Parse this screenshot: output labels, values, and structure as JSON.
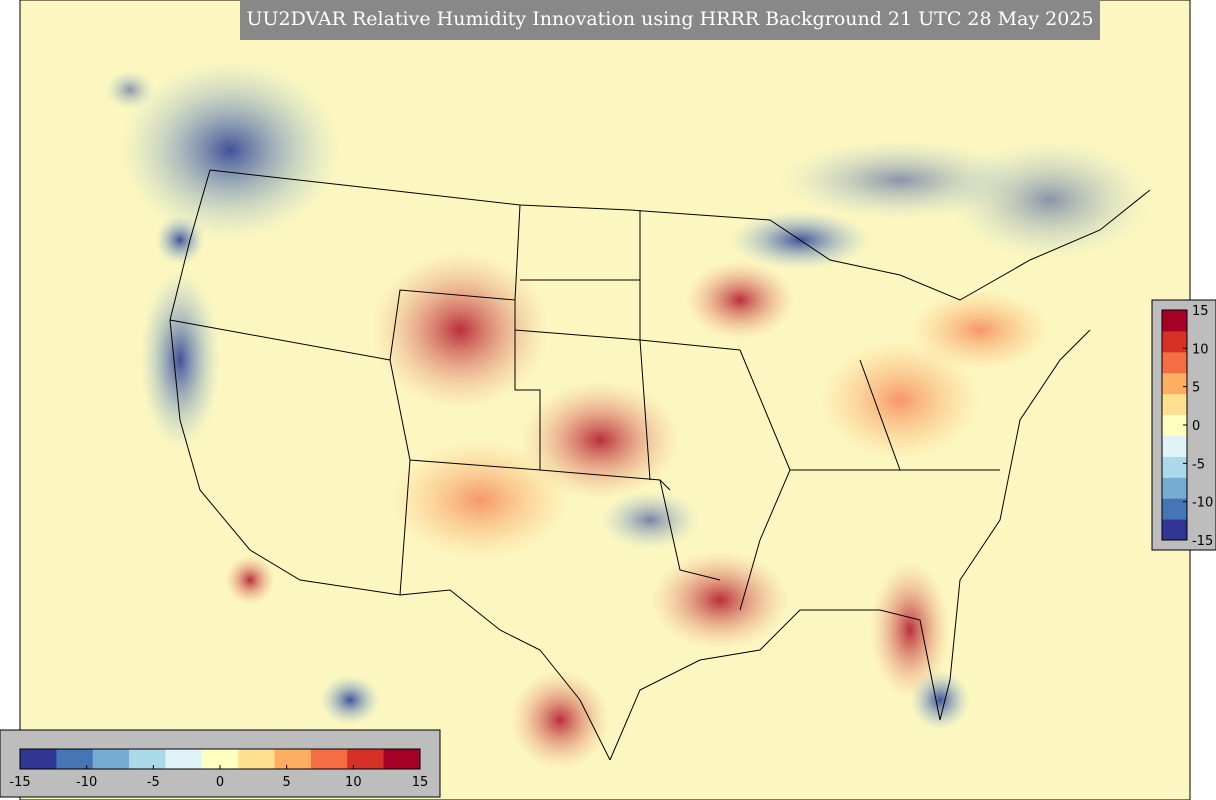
{
  "title": "UU2DVAR Relative Humidity Innovation using HRRR Background 21 UTC 28 May 2025",
  "colorbar": {
    "lim": [
      -15,
      15
    ],
    "ticks": [
      -15,
      -10,
      -5,
      0,
      5,
      10,
      15
    ],
    "colors": [
      "#313695",
      "#4575b4",
      "#74add1",
      "#abd9e9",
      "#e0f3f8",
      "#ffffbf",
      "#fee090",
      "#fdae61",
      "#f46d43",
      "#d73027",
      "#a50026"
    ]
  }
}
